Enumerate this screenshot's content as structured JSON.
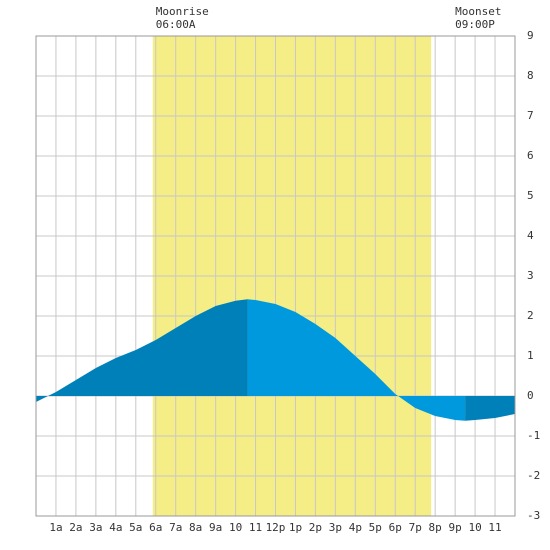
{
  "chart_data": {
    "type": "area",
    "annotations": [
      {
        "title": "Moonrise",
        "label": "06:00A",
        "x": 6
      },
      {
        "title": "Moonset",
        "label": "09:00P",
        "x": 21
      }
    ],
    "band": {
      "x": [
        5.85,
        19.8
      ],
      "color": "#f5ed85"
    },
    "series": [
      {
        "color": "#0080b8",
        "x": [
          0,
          1,
          2,
          3,
          4,
          5,
          6,
          7,
          8,
          9,
          10,
          10.6
        ],
        "values": [
          -0.15,
          0.1,
          0.4,
          0.7,
          0.95,
          1.15,
          1.4,
          1.7,
          2.0,
          2.25,
          2.38,
          2.42
        ]
      },
      {
        "color": "#0099dd",
        "x": [
          10.6,
          11,
          12,
          13,
          14,
          15,
          16,
          17,
          18,
          19,
          20,
          21,
          21.5
        ],
        "values": [
          2.42,
          2.4,
          2.3,
          2.1,
          1.8,
          1.45,
          1.0,
          0.55,
          0.05,
          -0.3,
          -0.5,
          -0.6,
          -0.62
        ]
      },
      {
        "color": "#0080b8",
        "x": [
          21.5,
          22,
          23,
          24
        ],
        "values": [
          -0.62,
          -0.6,
          -0.55,
          -0.45
        ]
      }
    ],
    "xlim": [
      0,
      24
    ],
    "xticks": [
      {
        "value": 1,
        "label": "1a"
      },
      {
        "value": 2,
        "label": "2a"
      },
      {
        "value": 3,
        "label": "3a"
      },
      {
        "value": 4,
        "label": "4a"
      },
      {
        "value": 5,
        "label": "5a"
      },
      {
        "value": 6,
        "label": "6a"
      },
      {
        "value": 7,
        "label": "7a"
      },
      {
        "value": 8,
        "label": "8a"
      },
      {
        "value": 9,
        "label": "9a"
      },
      10,
      11,
      {
        "value": 12,
        "label": "12p"
      },
      {
        "value": 13,
        "label": "1p"
      },
      {
        "value": 14,
        "label": "2p"
      },
      {
        "value": 15,
        "label": "3p"
      },
      {
        "value": 16,
        "label": "4p"
      },
      {
        "value": 17,
        "label": "5p"
      },
      {
        "value": 18,
        "label": "6p"
      },
      {
        "value": 19,
        "label": "7p"
      },
      {
        "value": 20,
        "label": "8p"
      },
      {
        "value": 21,
        "label": "9p"
      },
      {
        "value": 22,
        "label": "10"
      },
      {
        "value": 23,
        "label": "11"
      }
    ],
    "ylim": [
      -3,
      9
    ],
    "yticks": [
      -3,
      -2,
      -1,
      0,
      1,
      2,
      3,
      4,
      5,
      6,
      7,
      8,
      9
    ],
    "grid": true
  }
}
